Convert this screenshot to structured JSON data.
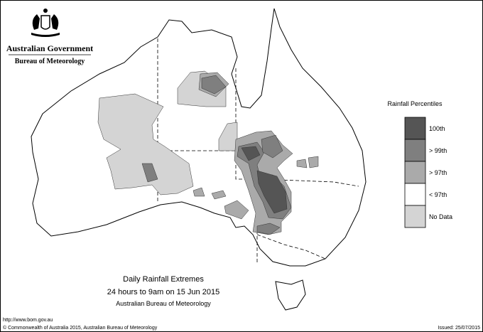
{
  "header": {
    "government": "Australian Government",
    "agency": "Bureau of Meteorology"
  },
  "legend": {
    "title": "Rainfall Percentiles",
    "items": [
      {
        "label": "100th",
        "color": "#555555"
      },
      {
        "label": "> 99th",
        "color": "#7f7f7f"
      },
      {
        "label": "> 97th",
        "color": "#aaaaaa"
      },
      {
        "label": "< 97th",
        "color": "#ffffff"
      },
      {
        "label": "No Data",
        "color": "#d4d4d4"
      }
    ]
  },
  "caption": {
    "title": "Daily Rainfall Extremes",
    "period": "24 hours to 9am on 15 Jun 2015",
    "source": "Australian Bureau of Meteorology"
  },
  "footer": {
    "url": "http://www.bom.gov.au",
    "copyright": "© Commonwealth of Australia 2015, Australian Bureau of Meteorology",
    "issued": "Issued: 25/07/2015"
  }
}
